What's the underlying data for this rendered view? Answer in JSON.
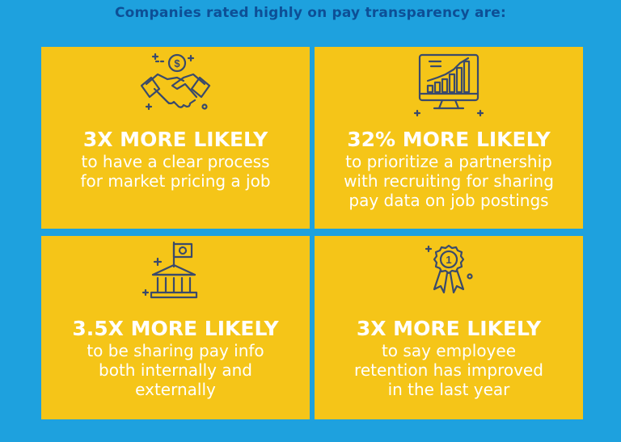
{
  "title": "Companies rated highly on pay transparency are:",
  "cards": [
    {
      "icon": "handshake-dollar-icon",
      "headline": "3X MORE LIKELY",
      "description": "to have a clear process\nfor market pricing a job"
    },
    {
      "icon": "monitor-bar-chart-icon",
      "headline": "32% MORE LIKELY",
      "description": "to prioritize a partnership\nwith recruiting for sharing\npay data on job postings"
    },
    {
      "icon": "building-flag-icon",
      "headline": "3.5X MORE LIKELY",
      "description": "to be sharing pay info\nboth internally and\nexternally"
    },
    {
      "icon": "award-ribbon-icon",
      "headline": "3X MORE LIKELY",
      "description": "to say employee\nretention has improved\nin the last year"
    }
  ],
  "colors": {
    "background": "#1ea1de",
    "card": "#f5c518",
    "title": "#0d4f96",
    "text": "#ffffff",
    "icon_stroke": "#3a4a6b"
  },
  "award_number": "1",
  "dollar_symbol": "$"
}
